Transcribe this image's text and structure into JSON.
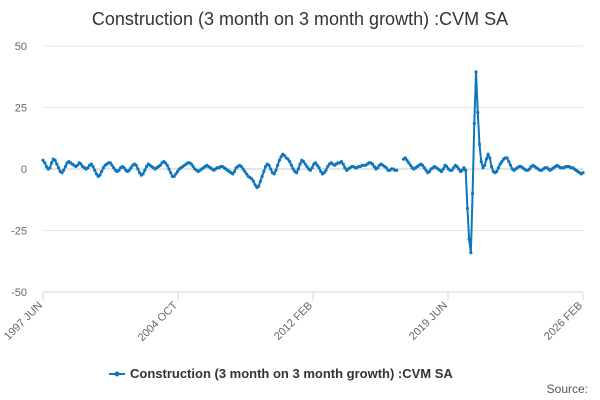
{
  "chart_data": {
    "type": "line",
    "title": "Construction (3 month on 3 month growth) :CVM SA",
    "xlabel": "",
    "ylabel": "",
    "ylim": [
      -50,
      50
    ],
    "yticks": [
      50,
      25,
      0,
      -25,
      -50
    ],
    "x_tick_labels": [
      "1997 JUN",
      "2004 OCT",
      "2012 FEB",
      "2019 JUN",
      "2026 FEB"
    ],
    "grid": true,
    "legend_position": "bottom",
    "series": [
      {
        "name": "Construction (3 month on 3 month growth) :CVM SA",
        "color": "#0e76bc",
        "values": [
          3.5,
          2.5,
          1.0,
          0.0,
          0.5,
          2.5,
          4.0,
          3.5,
          2.0,
          0.5,
          -1.0,
          -1.5,
          -0.5,
          1.0,
          2.5,
          3.0,
          2.5,
          2.0,
          1.5,
          1.0,
          1.5,
          2.5,
          2.0,
          1.0,
          0.5,
          0.0,
          0.5,
          1.5,
          2.0,
          1.0,
          -0.5,
          -2.0,
          -3.0,
          -2.5,
          -1.0,
          0.5,
          1.5,
          2.0,
          2.5,
          2.5,
          1.5,
          0.5,
          -0.5,
          -1.0,
          -0.5,
          0.5,
          1.0,
          0.5,
          -0.5,
          -1.0,
          -0.5,
          0.5,
          1.5,
          2.0,
          1.5,
          0.0,
          -1.5,
          -2.5,
          -2.0,
          -0.5,
          1.0,
          2.0,
          1.5,
          1.0,
          0.5,
          0.0,
          0.5,
          1.0,
          1.5,
          2.5,
          3.0,
          2.5,
          1.5,
          0.0,
          -1.5,
          -3.0,
          -3.0,
          -2.0,
          -1.0,
          0.0,
          0.5,
          1.0,
          1.5,
          2.0,
          2.5,
          2.5,
          2.0,
          1.0,
          0.0,
          -0.5,
          -1.0,
          -0.5,
          0.0,
          0.5,
          1.0,
          1.5,
          1.0,
          0.5,
          0.0,
          -0.5,
          0.0,
          0.5,
          0.5,
          1.0,
          1.0,
          0.5,
          0.0,
          -0.5,
          -1.0,
          -1.5,
          -2.0,
          -1.0,
          0.5,
          1.0,
          1.5,
          1.0,
          0.0,
          -1.0,
          -2.0,
          -3.0,
          -3.5,
          -4.0,
          -5.0,
          -6.5,
          -7.5,
          -7.0,
          -5.0,
          -3.0,
          -1.0,
          1.0,
          2.0,
          1.5,
          0.0,
          -1.5,
          -2.0,
          -0.5,
          1.5,
          3.5,
          5.0,
          6.0,
          5.5,
          4.5,
          4.0,
          3.0,
          1.5,
          0.0,
          -1.0,
          -1.5,
          0.0,
          2.0,
          3.5,
          3.0,
          2.0,
          1.0,
          0.0,
          -0.5,
          0.5,
          2.0,
          2.5,
          1.5,
          0.5,
          -1.0,
          -2.0,
          -1.5,
          -0.5,
          1.0,
          2.0,
          2.5,
          2.0,
          1.5,
          2.0,
          2.5,
          2.5,
          3.0,
          2.0,
          0.5,
          -0.5,
          0.0,
          0.5,
          1.0,
          1.0,
          0.5,
          0.5,
          1.0,
          1.0,
          1.5,
          1.5,
          1.5,
          2.0,
          2.5,
          2.5,
          2.0,
          1.0,
          0.0,
          0.5,
          1.5,
          2.0,
          1.5,
          1.0,
          0.5,
          -0.5,
          -0.5,
          0.0,
          0.0,
          -0.5,
          -0.5,
          null,
          null,
          null,
          4.0,
          4.5,
          3.5,
          2.5,
          1.5,
          0.5,
          0.0,
          0.5,
          1.0,
          1.5,
          2.0,
          1.5,
          0.5,
          -0.5,
          -1.5,
          -1.0,
          0.0,
          0.5,
          1.0,
          0.5,
          0.0,
          -0.5,
          -1.0,
          0.0,
          1.5,
          1.0,
          0.0,
          -0.5,
          -0.5,
          0.5,
          1.5,
          1.0,
          0.0,
          -1.0,
          -0.5,
          0.5,
          -0.5,
          -16.0,
          -28.5,
          -34.0,
          -10.0,
          18.5,
          39.5,
          23.0,
          10.0,
          3.0,
          0.5,
          1.5,
          4.0,
          6.0,
          4.5,
          1.0,
          -1.0,
          -1.5,
          -1.0,
          0.5,
          2.0,
          3.0,
          4.0,
          4.5,
          4.5,
          3.0,
          1.5,
          0.0,
          -0.5,
          0.0,
          0.5,
          1.0,
          1.0,
          0.5,
          0.0,
          -0.5,
          -0.5,
          0.0,
          1.0,
          1.5,
          1.0,
          0.5,
          0.0,
          -0.5,
          -0.5,
          0.0,
          0.5,
          0.5,
          0.0,
          -0.5,
          0.0,
          0.5,
          1.0,
          1.5,
          1.0,
          0.5,
          0.5,
          0.5,
          1.0,
          1.0,
          1.0,
          0.5,
          0.5,
          0.0,
          -0.5,
          -1.0,
          -1.5,
          -2.0,
          -1.5
        ]
      }
    ]
  },
  "legend": {
    "label": "Construction (3 month on 3 month growth) :CVM SA"
  },
  "footer": {
    "source_label": "Source:"
  }
}
